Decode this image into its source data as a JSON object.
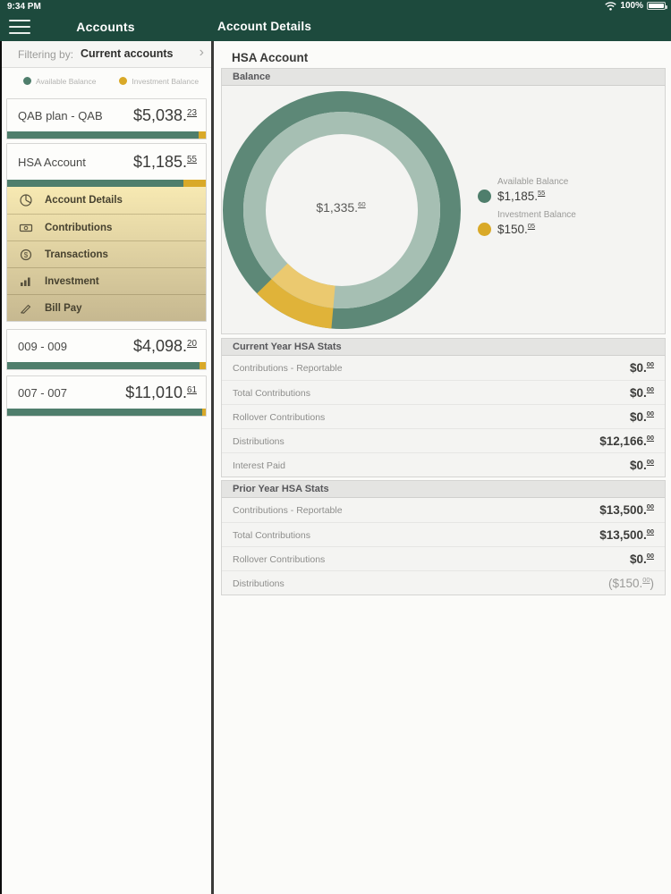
{
  "status_bar": {
    "time": "9:34 PM",
    "battery": "100%"
  },
  "nav": {
    "left_title": "Accounts",
    "right_title": "Account Details"
  },
  "sidebar": {
    "filter": {
      "label": "Filtering by:",
      "value": "Current accounts",
      "chevron": "›"
    },
    "legend": [
      {
        "label": "Available Balance",
        "color": "#4f7e6c"
      },
      {
        "label": "Investment Balance",
        "color": "#d9a928"
      }
    ],
    "accounts": [
      {
        "name": "QAB plan - QAB",
        "amount_main": "$5,038.",
        "amount_cents": "23",
        "available_pct": 96.5
      },
      {
        "name": "HSA Account",
        "amount_main": "$1,185.",
        "amount_cents": "55",
        "available_pct": 88.8
      },
      {
        "name": "009 - 009",
        "amount_main": "$4,098.",
        "amount_cents": "20",
        "available_pct": 97
      },
      {
        "name": "007 - 007",
        "amount_main": "$11,010.",
        "amount_cents": "61",
        "available_pct": 98
      }
    ],
    "account_menu": [
      {
        "label": "Account Details",
        "icon": "pie-chart-icon"
      },
      {
        "label": "Contributions",
        "icon": "banknote-icon"
      },
      {
        "label": "Transactions",
        "icon": "dollar-circle-icon"
      },
      {
        "label": "Investment",
        "icon": "bar-chart-icon"
      },
      {
        "label": "Bill Pay",
        "icon": "pen-icon"
      }
    ]
  },
  "details": {
    "title": "HSA Account",
    "balance_header": "Balance"
  },
  "chart_data": {
    "type": "pie",
    "title": "Balance",
    "style": "donut-two-ring",
    "center_label_main": "$1,335.",
    "center_label_cents": "60",
    "series": [
      {
        "name": "Available Balance",
        "value": 1185.55,
        "outer_color": "#5d8877",
        "inner_color": "#a6bfb3"
      },
      {
        "name": "Investment Balance",
        "value": 150.05,
        "outer_color": "#e0b339",
        "inner_color": "#ebc96f"
      }
    ],
    "legend_position": "right",
    "legend": [
      {
        "label": "Available Balance",
        "value_main": "$1,185.",
        "value_cents": "55"
      },
      {
        "label": "Investment Balance",
        "value_main": "$150.",
        "value_cents": "05"
      }
    ]
  },
  "stats_current": {
    "header": "Current Year HSA Stats",
    "rows": [
      {
        "label": "Contributions - Reportable",
        "value_main": "$0.",
        "value_cents": "00",
        "suffix": ""
      },
      {
        "label": "Total Contributions",
        "value_main": "$0.",
        "value_cents": "00",
        "suffix": ""
      },
      {
        "label": "Rollover Contributions",
        "value_main": "$0.",
        "value_cents": "00",
        "suffix": ""
      },
      {
        "label": "Distributions",
        "value_main": "$12,166.",
        "value_cents": "00",
        "suffix": ""
      },
      {
        "label": "Interest Paid",
        "value_main": "$0.",
        "value_cents": "00",
        "suffix": ""
      }
    ]
  },
  "stats_prior": {
    "header": "Prior Year HSA Stats",
    "rows": [
      {
        "label": "Contributions - Reportable",
        "value_main": "$13,500.",
        "value_cents": "00",
        "suffix": ""
      },
      {
        "label": "Total Contributions",
        "value_main": "$13,500.",
        "value_cents": "00",
        "suffix": ""
      },
      {
        "label": "Rollover Contributions",
        "value_main": "$0.",
        "value_cents": "00",
        "suffix": ""
      },
      {
        "label": "Distributions",
        "value_main": "($150.",
        "value_cents": "00",
        "suffix": ")"
      }
    ]
  }
}
